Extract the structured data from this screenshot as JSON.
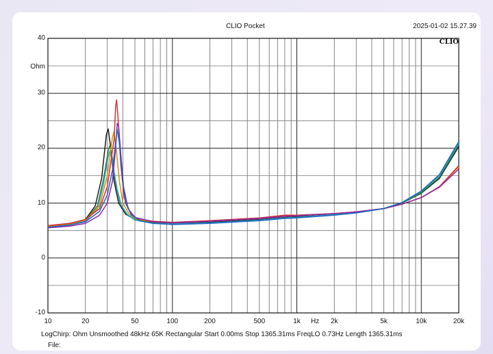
{
  "header": {
    "title": "CLIO Pocket",
    "timestamp": "2025-01-02 15.27.39",
    "brand": "CLIO"
  },
  "footer": {
    "info": "LogChirp:  Ohm   Unsmoothed   48kHz   65K   Rectangular   Start 0.00ms    Stop 1365.31ms    FreqLO 0.73Hz    Length 1365.31ms",
    "file_label": "File:"
  },
  "chart_data": {
    "type": "line",
    "ylabel": "Ohm",
    "xlabel": "Hz",
    "x_scale": "log",
    "xlim": [
      10,
      20000
    ],
    "ylim": [
      -10,
      40
    ],
    "grid": true,
    "y_ticks": [
      "40",
      "30",
      "20",
      "10",
      "0",
      "-10"
    ],
    "x_ticks": [
      {
        "value": 10,
        "label": "10"
      },
      {
        "value": 20,
        "label": "20"
      },
      {
        "value": 50,
        "label": "50"
      },
      {
        "value": 100,
        "label": "100"
      },
      {
        "value": 200,
        "label": "200"
      },
      {
        "value": 500,
        "label": "500"
      },
      {
        "value": 1000,
        "label": "1k"
      },
      {
        "value": 2000,
        "label": "2k"
      },
      {
        "value": 5000,
        "label": "5k"
      },
      {
        "value": 10000,
        "label": "10k"
      },
      {
        "value": 20000,
        "label": "20k"
      }
    ],
    "series": [
      {
        "color": "#1a1a1a",
        "points": [
          [
            10,
            5.9
          ],
          [
            15,
            6.3
          ],
          [
            20,
            7.0
          ],
          [
            24,
            9.5
          ],
          [
            27,
            14.5
          ],
          [
            29.5,
            22.5
          ],
          [
            30.5,
            23.5
          ],
          [
            32,
            20
          ],
          [
            34,
            14
          ],
          [
            37,
            10
          ],
          [
            42,
            8
          ],
          [
            50,
            7.0
          ],
          [
            70,
            6.5
          ],
          [
            100,
            6.3
          ],
          [
            200,
            6.5
          ],
          [
            500,
            7.0
          ],
          [
            800,
            7.4
          ],
          [
            1000,
            7.5
          ],
          [
            2000,
            7.9
          ],
          [
            3000,
            8.3
          ],
          [
            5000,
            9.0
          ],
          [
            7000,
            10.0
          ],
          [
            10000,
            11.8
          ],
          [
            14000,
            14.5
          ],
          [
            20000,
            20.3
          ]
        ]
      },
      {
        "color": "#2e7d32",
        "points": [
          [
            10,
            5.8
          ],
          [
            15,
            6.2
          ],
          [
            20,
            6.9
          ],
          [
            25,
            9.5
          ],
          [
            28,
            14.5
          ],
          [
            30.5,
            19.5
          ],
          [
            31.5,
            20.5
          ],
          [
            33,
            18
          ],
          [
            35,
            13.5
          ],
          [
            38,
            10
          ],
          [
            43,
            8
          ],
          [
            50,
            7.0
          ],
          [
            70,
            6.4
          ],
          [
            100,
            6.2
          ],
          [
            200,
            6.4
          ],
          [
            500,
            6.9
          ],
          [
            800,
            7.3
          ],
          [
            1000,
            7.4
          ],
          [
            2000,
            7.9
          ],
          [
            3000,
            8.3
          ],
          [
            5000,
            9.0
          ],
          [
            7000,
            10.0
          ],
          [
            10000,
            11.9
          ],
          [
            14000,
            14.7
          ],
          [
            20000,
            20.6
          ]
        ]
      },
      {
        "color": "#26a7c9",
        "points": [
          [
            10,
            5.7
          ],
          [
            15,
            6.1
          ],
          [
            20,
            6.7
          ],
          [
            25,
            9.0
          ],
          [
            28,
            13.5
          ],
          [
            30.5,
            18.5
          ],
          [
            31.5,
            19.5
          ],
          [
            33,
            17.5
          ],
          [
            36,
            12.5
          ],
          [
            39,
            9.5
          ],
          [
            44,
            7.8
          ],
          [
            50,
            6.9
          ],
          [
            70,
            6.3
          ],
          [
            100,
            6.2
          ],
          [
            200,
            6.4
          ],
          [
            500,
            6.9
          ],
          [
            800,
            7.3
          ],
          [
            1000,
            7.4
          ],
          [
            2000,
            7.9
          ],
          [
            3000,
            8.3
          ],
          [
            5000,
            9.0
          ],
          [
            7000,
            10.1
          ],
          [
            10000,
            12.1
          ],
          [
            14000,
            15.0
          ],
          [
            20000,
            21.0
          ]
        ]
      },
      {
        "color": "#e08a00",
        "points": [
          [
            10,
            5.8
          ],
          [
            15,
            6.2
          ],
          [
            20,
            6.9
          ],
          [
            26,
            9.5
          ],
          [
            30,
            15
          ],
          [
            33,
            22
          ],
          [
            34,
            23
          ],
          [
            35.5,
            19.5
          ],
          [
            37.5,
            14
          ],
          [
            40,
            10
          ],
          [
            45,
            8
          ],
          [
            52,
            7.0
          ],
          [
            70,
            6.6
          ],
          [
            100,
            6.4
          ],
          [
            200,
            6.7
          ],
          [
            500,
            7.2
          ],
          [
            800,
            7.6
          ],
          [
            1000,
            7.7
          ],
          [
            2000,
            8.1
          ],
          [
            3000,
            8.4
          ],
          [
            5000,
            9.0
          ],
          [
            7000,
            9.8
          ],
          [
            10000,
            11.0
          ],
          [
            14000,
            13.0
          ],
          [
            20000,
            16.6
          ]
        ]
      },
      {
        "color": "#d32f2f",
        "points": [
          [
            10,
            5.9
          ],
          [
            15,
            6.3
          ],
          [
            20,
            7.0
          ],
          [
            26,
            9.0
          ],
          [
            30,
            13
          ],
          [
            33,
            19.5
          ],
          [
            34,
            21.5
          ],
          [
            35,
            27.5
          ],
          [
            35.6,
            28.8
          ],
          [
            36.5,
            26
          ],
          [
            38.5,
            17
          ],
          [
            41,
            11
          ],
          [
            46,
            8.2
          ],
          [
            52,
            7.2
          ],
          [
            70,
            6.7
          ],
          [
            100,
            6.5
          ],
          [
            200,
            6.8
          ],
          [
            500,
            7.3
          ],
          [
            800,
            7.8
          ],
          [
            1000,
            7.8
          ],
          [
            2000,
            8.1
          ],
          [
            3000,
            8.4
          ],
          [
            5000,
            9.0
          ],
          [
            7000,
            9.8
          ],
          [
            10000,
            11.0
          ],
          [
            14000,
            13.0
          ],
          [
            20000,
            16.8
          ]
        ]
      },
      {
        "color": "#8e24aa",
        "points": [
          [
            10,
            5.5
          ],
          [
            15,
            5.8
          ],
          [
            20,
            6.3
          ],
          [
            26,
            7.8
          ],
          [
            30,
            10
          ],
          [
            33,
            14
          ],
          [
            35,
            20
          ],
          [
            36,
            24.5
          ],
          [
            37,
            24
          ],
          [
            38.5,
            19
          ],
          [
            40.5,
            13
          ],
          [
            44,
            9
          ],
          [
            50,
            7.4
          ],
          [
            70,
            6.6
          ],
          [
            100,
            6.4
          ],
          [
            200,
            6.7
          ],
          [
            500,
            7.2
          ],
          [
            800,
            7.6
          ],
          [
            1000,
            7.7
          ],
          [
            2000,
            8.1
          ],
          [
            3000,
            8.4
          ],
          [
            5000,
            9.0
          ],
          [
            7000,
            9.8
          ],
          [
            10000,
            11.0
          ],
          [
            14000,
            12.9
          ],
          [
            20000,
            16.2
          ]
        ]
      },
      {
        "color": "#1565c0",
        "points": [
          [
            10,
            5.6
          ],
          [
            15,
            6.0
          ],
          [
            20,
            6.6
          ],
          [
            26,
            8.5
          ],
          [
            30,
            11.5
          ],
          [
            33,
            16
          ],
          [
            35,
            21
          ],
          [
            36,
            23.5
          ],
          [
            37.5,
            21
          ],
          [
            39.5,
            14.5
          ],
          [
            42,
            10
          ],
          [
            47,
            7.8
          ],
          [
            55,
            6.8
          ],
          [
            70,
            6.3
          ],
          [
            100,
            6.1
          ],
          [
            200,
            6.3
          ],
          [
            500,
            6.8
          ],
          [
            800,
            7.2
          ],
          [
            1000,
            7.3
          ],
          [
            2000,
            7.8
          ],
          [
            3000,
            8.2
          ],
          [
            5000,
            9.0
          ],
          [
            7000,
            10.1
          ],
          [
            10000,
            12.2
          ],
          [
            14000,
            15.2
          ],
          [
            20000,
            21.2
          ]
        ]
      }
    ]
  }
}
